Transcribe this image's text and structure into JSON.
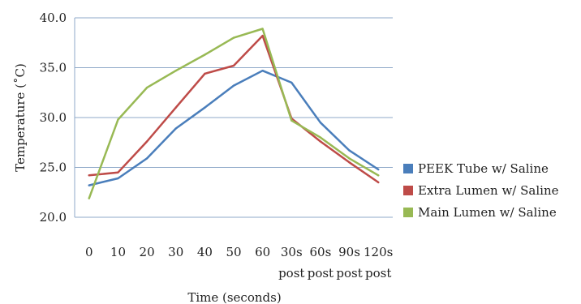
{
  "chart_data": {
    "type": "line",
    "title": "",
    "xlabel": "Time (seconds)",
    "ylabel": "Temperature (˚C)",
    "ylim": [
      20.0,
      40.0
    ],
    "yticks": [
      "20.0",
      "25.0",
      "30.0",
      "35.0",
      "40.0"
    ],
    "grid": "horizontal",
    "legend_position": "right",
    "categories": [
      {
        "line1": "0",
        "line2": ""
      },
      {
        "line1": "10",
        "line2": ""
      },
      {
        "line1": "20",
        "line2": ""
      },
      {
        "line1": "30",
        "line2": ""
      },
      {
        "line1": "40",
        "line2": ""
      },
      {
        "line1": "50",
        "line2": ""
      },
      {
        "line1": "60",
        "line2": ""
      },
      {
        "line1": "30s",
        "line2": "post"
      },
      {
        "line1": "60s",
        "line2": "post"
      },
      {
        "line1": "90s",
        "line2": "post"
      },
      {
        "line1": "120s",
        "line2": "post"
      }
    ],
    "series": [
      {
        "name": "PEEK Tube w/ Saline",
        "color": "#4a7ebb",
        "values": [
          23.2,
          23.9,
          25.9,
          28.9,
          31.0,
          33.2,
          34.7,
          33.5,
          29.5,
          26.7,
          24.8
        ]
      },
      {
        "name": "Extra Lumen w/ Saline",
        "color": "#be4b48",
        "values": [
          24.2,
          24.5,
          27.6,
          31.0,
          34.4,
          35.2,
          38.2,
          29.9,
          27.6,
          25.5,
          23.5
        ]
      },
      {
        "name": "Main Lumen w/ Saline",
        "color": "#98b954",
        "values": [
          21.9,
          29.8,
          33.0,
          34.7,
          36.3,
          38.0,
          38.9,
          29.7,
          28.0,
          25.9,
          24.2
        ]
      }
    ]
  }
}
